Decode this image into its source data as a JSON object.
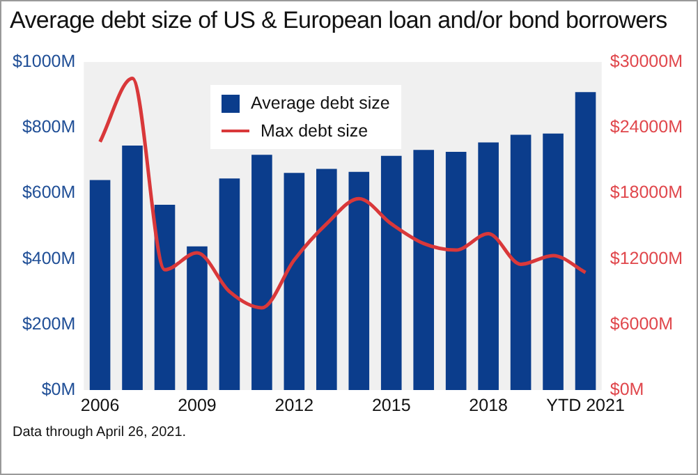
{
  "chart_data": {
    "type": "bar",
    "title": "Average debt size of US & European loan and/or bond borrowers",
    "categories": [
      "2006",
      null,
      null,
      "2009",
      null,
      null,
      "2012",
      null,
      null,
      "2015",
      null,
      null,
      "2018",
      null,
      null,
      "YTD 2021"
    ],
    "series": [
      {
        "name": "Average debt size",
        "color": "#0b3d8c",
        "values": [
          640,
          745,
          565,
          438,
          645,
          717,
          662,
          674,
          665,
          714,
          732,
          726,
          755,
          778,
          782,
          908
        ]
      },
      {
        "name": "Max debt size",
        "type": "line",
        "axis": "y2",
        "color": "#d9383a",
        "values": [
          22700,
          28500,
          11000,
          12550,
          9000,
          7520,
          11900,
          15200,
          17500,
          15200,
          13400,
          12800,
          14300,
          11500,
          12300,
          10750
        ]
      }
    ],
    "ylim": [
      0,
      1000
    ],
    "yticks": [
      {
        "value": 0,
        "label": "$0M"
      },
      {
        "value": 200,
        "label": "$200M"
      },
      {
        "value": 400,
        "label": "$400M"
      },
      {
        "value": 600,
        "label": "$600M"
      },
      {
        "value": 800,
        "label": "$800M"
      },
      {
        "value": 1000,
        "label": "$1000M"
      }
    ],
    "y2lim": [
      0,
      30000
    ],
    "y2ticks": [
      {
        "value": 0,
        "label": "$0M"
      },
      {
        "value": 6000,
        "label": "$6000M"
      },
      {
        "value": 12000,
        "label": "$12000M"
      },
      {
        "value": 18000,
        "label": "$18000M"
      },
      {
        "value": 24000,
        "label": "$24000M"
      },
      {
        "value": 30000,
        "label": "$30000M"
      }
    ],
    "grid": false,
    "legend": "top",
    "marker": "none",
    "line_style": "solid",
    "annotations": [
      "Data through April 26, 2021."
    ]
  }
}
